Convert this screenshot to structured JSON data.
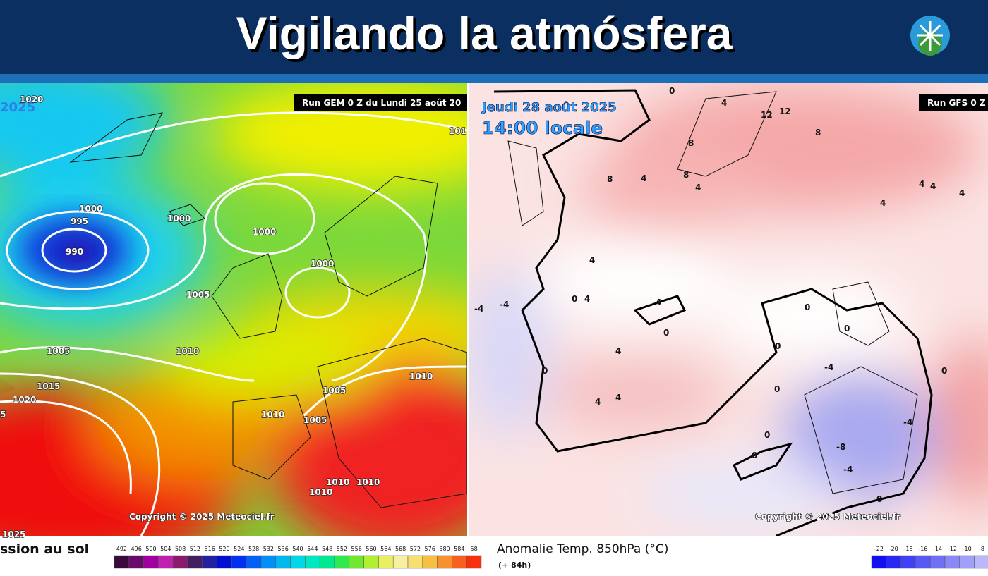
{
  "header": {
    "title": "Vigilando la atmósfera"
  },
  "left_map": {
    "date_label": "2025",
    "run_label": "Run GEM 0 Z du Lundi 25 août 20",
    "copyright": "Copyright © 2025 Meteociel.fr",
    "caption": "ssion au sol",
    "contour_labels": [
      "1020",
      "1000",
      "995",
      "990",
      "1000",
      "1000",
      "1000",
      "1005",
      "1005",
      "1010",
      "1015",
      "1020",
      "5",
      "1005",
      "1010",
      "1010",
      "1005",
      "1010",
      "1010",
      "1010",
      "1025",
      "101"
    ],
    "colorbar_labels": [
      "492",
      "496",
      "500",
      "504",
      "508",
      "512",
      "516",
      "520",
      "524",
      "528",
      "532",
      "536",
      "540",
      "544",
      "548",
      "552",
      "556",
      "560",
      "564",
      "568",
      "572",
      "576",
      "580",
      "584",
      "58"
    ]
  },
  "right_map": {
    "date_label": "Jeudi 28 août 2025",
    "time_label": "14:00 locale",
    "run_label": "Run GFS 0 Z",
    "copyright": "Copyright © 2025 Meteociel.fr",
    "caption": "Anomalie Temp. 850hPa (°C)",
    "subcaption": "(+ 84h)",
    "anomaly_labels": [
      "0",
      "4",
      "12",
      "12",
      "8",
      "8",
      "8",
      "8",
      "4",
      "4",
      "4",
      "4",
      "4",
      "4",
      "0",
      "4",
      "4",
      "0",
      "0",
      "0",
      "-4",
      "-4",
      "0",
      "4",
      "4",
      "4",
      "0",
      "0",
      "0",
      "-4",
      "-8",
      "-4",
      "-4",
      "0",
      "0",
      "0",
      "4"
    ],
    "colorbar_labels": [
      "-22",
      "-20",
      "-18",
      "-16",
      "-14",
      "-12",
      "-10",
      "-8"
    ]
  }
}
